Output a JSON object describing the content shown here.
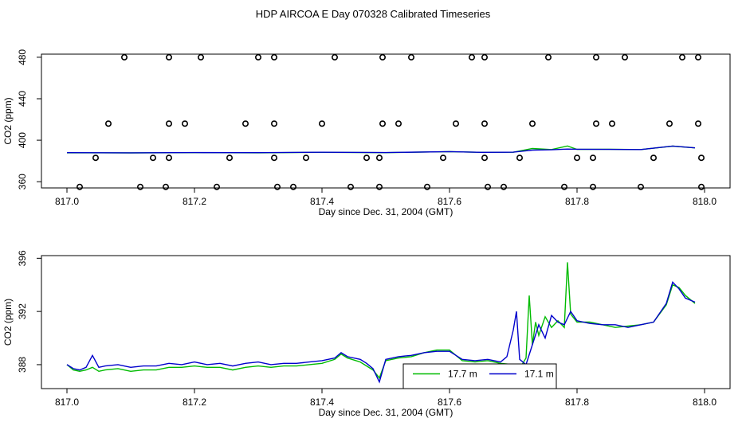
{
  "title": "HDP AIRCOA E  Day 070328  Calibrated Timeseries",
  "chart_data": [
    {
      "type": "scatter",
      "xlabel": "Day since Dec. 31, 2004 (GMT)",
      "ylabel": "CO2 (ppm)",
      "xlim": [
        816.96,
        818.04
      ],
      "ylim": [
        354,
        483
      ],
      "xticks": [
        "817.0",
        "817.2",
        "817.4",
        "817.6",
        "817.8",
        "818.0"
      ],
      "yticks": [
        "360",
        "400",
        "440",
        "480"
      ],
      "grid": false,
      "markers": {
        "style": "open-circle",
        "points": [
          [
            817.09,
            480
          ],
          [
            817.16,
            480
          ],
          [
            817.21,
            480
          ],
          [
            817.3,
            480
          ],
          [
            817.325,
            480
          ],
          [
            817.42,
            480
          ],
          [
            817.495,
            480
          ],
          [
            817.54,
            480
          ],
          [
            817.635,
            480
          ],
          [
            817.655,
            480
          ],
          [
            817.755,
            480
          ],
          [
            817.83,
            480
          ],
          [
            817.875,
            480
          ],
          [
            817.965,
            480
          ],
          [
            817.99,
            480
          ],
          [
            817.065,
            416
          ],
          [
            817.16,
            416
          ],
          [
            817.185,
            416
          ],
          [
            817.28,
            416
          ],
          [
            817.325,
            416
          ],
          [
            817.4,
            416
          ],
          [
            817.495,
            416
          ],
          [
            817.52,
            416
          ],
          [
            817.61,
            416
          ],
          [
            817.655,
            416
          ],
          [
            817.73,
            416
          ],
          [
            817.83,
            416
          ],
          [
            817.855,
            416
          ],
          [
            817.945,
            416
          ],
          [
            817.99,
            416
          ],
          [
            817.045,
            383
          ],
          [
            817.135,
            383
          ],
          [
            817.16,
            383
          ],
          [
            817.255,
            383
          ],
          [
            817.325,
            383
          ],
          [
            817.375,
            383
          ],
          [
            817.47,
            383
          ],
          [
            817.49,
            383
          ],
          [
            817.59,
            383
          ],
          [
            817.655,
            383
          ],
          [
            817.71,
            383
          ],
          [
            817.8,
            383
          ],
          [
            817.825,
            383
          ],
          [
            817.92,
            383
          ],
          [
            817.995,
            383
          ],
          [
            817.02,
            355
          ],
          [
            817.115,
            355
          ],
          [
            817.155,
            355
          ],
          [
            817.235,
            355
          ],
          [
            817.33,
            355
          ],
          [
            817.355,
            355
          ],
          [
            817.445,
            355
          ],
          [
            817.49,
            355
          ],
          [
            817.565,
            355
          ],
          [
            817.66,
            355
          ],
          [
            817.685,
            355
          ],
          [
            817.78,
            355
          ],
          [
            817.825,
            355
          ],
          [
            817.9,
            355
          ],
          [
            817.995,
            355
          ]
        ]
      },
      "series": [
        {
          "name": "17.7 m",
          "color": "#00bb00",
          "x": [
            817.0,
            817.1,
            817.2,
            817.3,
            817.4,
            817.5,
            817.6,
            817.65,
            817.7,
            817.73,
            817.76,
            817.785,
            817.8,
            817.85,
            817.9,
            817.95,
            817.985
          ],
          "y": [
            387.9,
            387.8,
            388.0,
            387.9,
            388.3,
            388.0,
            389.0,
            388.3,
            388.4,
            392.0,
            391.0,
            394.5,
            391.2,
            391.3,
            391.0,
            394.3,
            392.6
          ]
        },
        {
          "name": "17.1 m",
          "color": "#0000cc",
          "x": [
            817.0,
            817.1,
            817.2,
            817.3,
            817.4,
            817.5,
            817.6,
            817.65,
            817.7,
            817.73,
            817.76,
            817.785,
            817.8,
            817.85,
            817.9,
            817.95,
            817.985
          ],
          "y": [
            388.0,
            387.9,
            388.1,
            388.0,
            388.4,
            388.1,
            389.0,
            388.3,
            388.5,
            390.5,
            390.8,
            391.5,
            391.3,
            391.2,
            391.0,
            394.4,
            392.6
          ]
        }
      ]
    },
    {
      "type": "line",
      "xlabel": "Day since Dec. 31, 2004 (GMT)",
      "ylabel": "CO2 (ppm)",
      "xlim": [
        816.96,
        818.04
      ],
      "ylim": [
        386.2,
        396.2
      ],
      "xticks": [
        "817.0",
        "817.2",
        "817.4",
        "817.6",
        "817.8",
        "818.0"
      ],
      "yticks": [
        "388",
        "392",
        "396"
      ],
      "grid": false,
      "legend": "bottom-center",
      "series": [
        {
          "name": "17.7 m",
          "color": "#00bb00",
          "x": [
            817.0,
            817.01,
            817.02,
            817.03,
            817.04,
            817.05,
            817.06,
            817.08,
            817.1,
            817.12,
            817.14,
            817.16,
            817.18,
            817.2,
            817.22,
            817.24,
            817.26,
            817.28,
            817.3,
            817.32,
            817.34,
            817.36,
            817.38,
            817.4,
            817.42,
            817.43,
            817.44,
            817.46,
            817.47,
            817.48,
            817.49,
            817.5,
            817.52,
            817.54,
            817.56,
            817.58,
            817.6,
            817.62,
            817.64,
            817.66,
            817.68,
            817.7,
            817.71,
            817.72,
            817.725,
            817.73,
            817.735,
            817.74,
            817.75,
            817.76,
            817.77,
            817.78,
            817.785,
            817.79,
            817.8,
            817.82,
            817.84,
            817.86,
            817.88,
            817.9,
            817.92,
            817.94,
            817.95,
            817.96,
            817.97,
            817.985
          ],
          "y": [
            388.0,
            387.6,
            387.5,
            387.6,
            387.8,
            387.5,
            387.6,
            387.7,
            387.5,
            387.6,
            387.6,
            387.8,
            387.8,
            387.9,
            387.8,
            387.8,
            387.6,
            387.8,
            387.9,
            387.8,
            387.9,
            387.9,
            388.0,
            388.1,
            388.4,
            388.8,
            388.5,
            388.2,
            387.9,
            387.6,
            387.0,
            388.3,
            388.5,
            388.6,
            388.9,
            389.1,
            389.1,
            388.3,
            388.2,
            388.3,
            388.1,
            388.0,
            387.7,
            388.5,
            393.2,
            389.5,
            391.2,
            390.2,
            391.6,
            390.8,
            391.3,
            390.8,
            395.7,
            391.8,
            391.2,
            391.2,
            391.0,
            390.8,
            390.9,
            391.0,
            391.2,
            392.5,
            394.0,
            393.8,
            393.2,
            392.6
          ]
        },
        {
          "name": "17.1 m",
          "color": "#0000cc",
          "x": [
            817.0,
            817.01,
            817.02,
            817.03,
            817.04,
            817.05,
            817.06,
            817.08,
            817.1,
            817.12,
            817.14,
            817.16,
            817.18,
            817.2,
            817.22,
            817.24,
            817.26,
            817.28,
            817.3,
            817.32,
            817.34,
            817.36,
            817.38,
            817.4,
            817.42,
            817.43,
            817.44,
            817.46,
            817.47,
            817.48,
            817.49,
            817.5,
            817.52,
            817.54,
            817.56,
            817.58,
            817.6,
            817.62,
            817.64,
            817.66,
            817.68,
            817.69,
            817.7,
            817.705,
            817.71,
            817.72,
            817.73,
            817.74,
            817.75,
            817.76,
            817.77,
            817.78,
            817.79,
            817.8,
            817.82,
            817.84,
            817.86,
            817.88,
            817.9,
            817.92,
            817.94,
            817.95,
            817.96,
            817.97,
            817.985
          ],
          "y": [
            388.0,
            387.7,
            387.6,
            387.8,
            388.7,
            387.8,
            387.9,
            388.0,
            387.8,
            387.9,
            387.9,
            388.1,
            388.0,
            388.2,
            388.0,
            388.1,
            387.9,
            388.1,
            388.2,
            388.0,
            388.1,
            388.1,
            388.2,
            388.3,
            388.5,
            388.9,
            388.6,
            388.4,
            388.1,
            387.7,
            386.7,
            388.4,
            388.6,
            388.7,
            388.9,
            389.0,
            389.0,
            388.4,
            388.3,
            388.4,
            388.2,
            388.6,
            390.6,
            392.0,
            388.4,
            388.0,
            389.5,
            391.0,
            390.0,
            391.7,
            391.2,
            391.0,
            392.0,
            391.3,
            391.1,
            391.0,
            391.0,
            390.8,
            391.0,
            391.2,
            392.6,
            394.2,
            393.7,
            393.0,
            392.7
          ]
        }
      ]
    }
  ]
}
